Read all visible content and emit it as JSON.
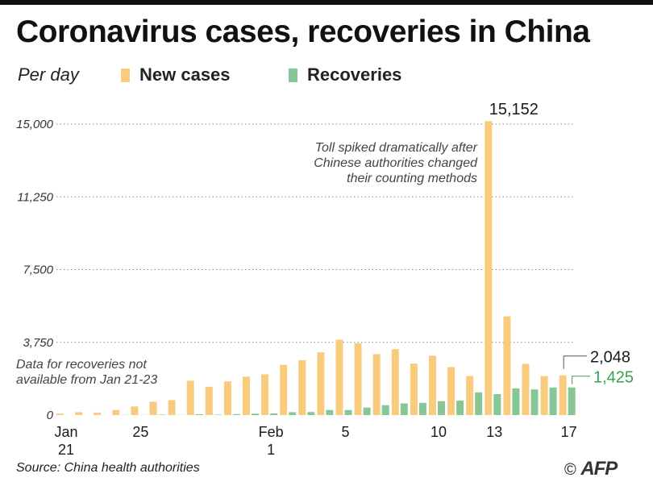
{
  "title": "Coronavirus cases, recoveries in China",
  "subtitle": "Per day",
  "source": "Source: China health authorities",
  "logo": {
    "copyright": "©",
    "brand": "AFP"
  },
  "colors": {
    "new_cases": "#f9cb7c",
    "recoveries": "#87c795",
    "recoveries_label": "#3aa14c",
    "grid": "#8a8a8a"
  },
  "chart_data": {
    "type": "bar",
    "title": "Coronavirus cases, recoveries in China",
    "subtitle": "Per day",
    "ylim": [
      0,
      15152
    ],
    "yticks": [
      0,
      3750,
      7500,
      11250,
      15000
    ],
    "ytick_labels": [
      "0",
      "3,750",
      "7,500",
      "11,250",
      "15,000"
    ],
    "grid": true,
    "legend": "top",
    "xtick_labels": [
      {
        "index": 0,
        "line1": "Jan",
        "line2": "21"
      },
      {
        "index": 4,
        "line1": "25",
        "line2": ""
      },
      {
        "index": 11,
        "line1": "Feb",
        "line2": "1"
      },
      {
        "index": 15,
        "line1": "5",
        "line2": ""
      },
      {
        "index": 20,
        "line1": "10",
        "line2": ""
      },
      {
        "index": 23,
        "line1": "13",
        "line2": ""
      },
      {
        "index": 27,
        "line1": "17",
        "line2": ""
      }
    ],
    "categories": [
      "Jan 21",
      "Jan 22",
      "Jan 23",
      "Jan 24",
      "Jan 25",
      "Jan 26",
      "Jan 27",
      "Jan 28",
      "Jan 29",
      "Jan 30",
      "Jan 31",
      "Feb 1",
      "Feb 2",
      "Feb 3",
      "Feb 4",
      "Feb 5",
      "Feb 6",
      "Feb 7",
      "Feb 8",
      "Feb 9",
      "Feb 10",
      "Feb 11",
      "Feb 12",
      "Feb 13",
      "Feb 14",
      "Feb 15",
      "Feb 16",
      "Feb 17"
    ],
    "series": [
      {
        "name": "New cases",
        "values": [
          77,
          149,
          131,
          259,
          444,
          688,
          769,
          1771,
          1459,
          1737,
          1982,
          2102,
          2590,
          2829,
          3235,
          3887,
          3694,
          3143,
          3399,
          2656,
          3062,
          2478,
          2015,
          15152,
          5090,
          2641,
          2009,
          2048
        ]
      },
      {
        "name": "Recoveries",
        "values": [
          null,
          null,
          null,
          11,
          10,
          23,
          9,
          43,
          21,
          47,
          72,
          85,
          147,
          157,
          262,
          261,
          387,
          510,
          600,
          632,
          716,
          744,
          1171,
          1081,
          1373,
          1323,
          1425,
          1425
        ]
      }
    ],
    "data_labels": [
      {
        "series": "New cases",
        "index": 23,
        "text": "15,152"
      },
      {
        "series": "New cases",
        "index": 27,
        "text": "2,048"
      },
      {
        "series": "Recoveries",
        "index": 27,
        "text": "1,425"
      }
    ],
    "annotations": [
      {
        "lines": [
          "Toll spiked dramatically after",
          "Chinese authorities changed",
          "their counting methods"
        ]
      },
      {
        "lines": [
          "Data for recoveries not",
          "available from Jan 21-23"
        ]
      }
    ]
  }
}
